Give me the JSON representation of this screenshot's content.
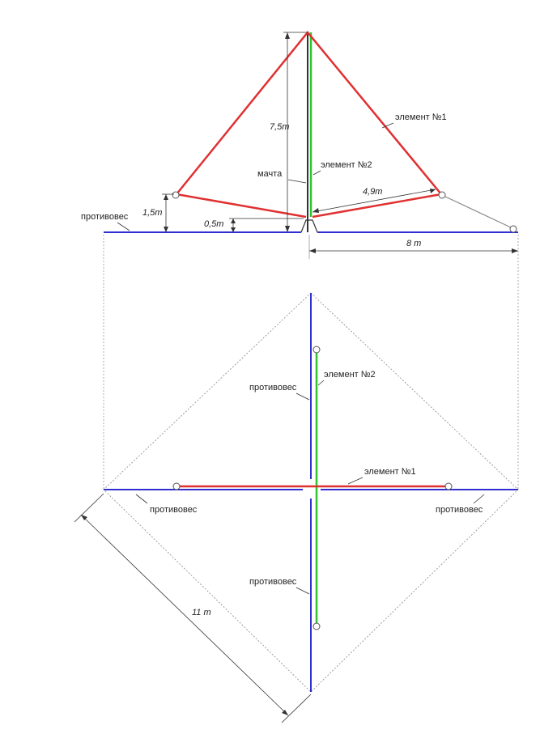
{
  "colors": {
    "element1": "#e03030",
    "element2": "#2ec42e",
    "counterpoise": "#3030d0",
    "mast": "#333333",
    "guide": "#888888",
    "dim": "#333333"
  },
  "labels": {
    "element1": "элемент №1",
    "element2": "элемент №2",
    "mast": "мачта",
    "counterpoise": "противовес"
  },
  "dimensions": {
    "mast_height": "7,5m",
    "element_end_height": "1,5m",
    "feed_height": "0,5m",
    "leg_length": "4,9m",
    "counterpoise_length": "8 m",
    "square_side": "11 m"
  }
}
